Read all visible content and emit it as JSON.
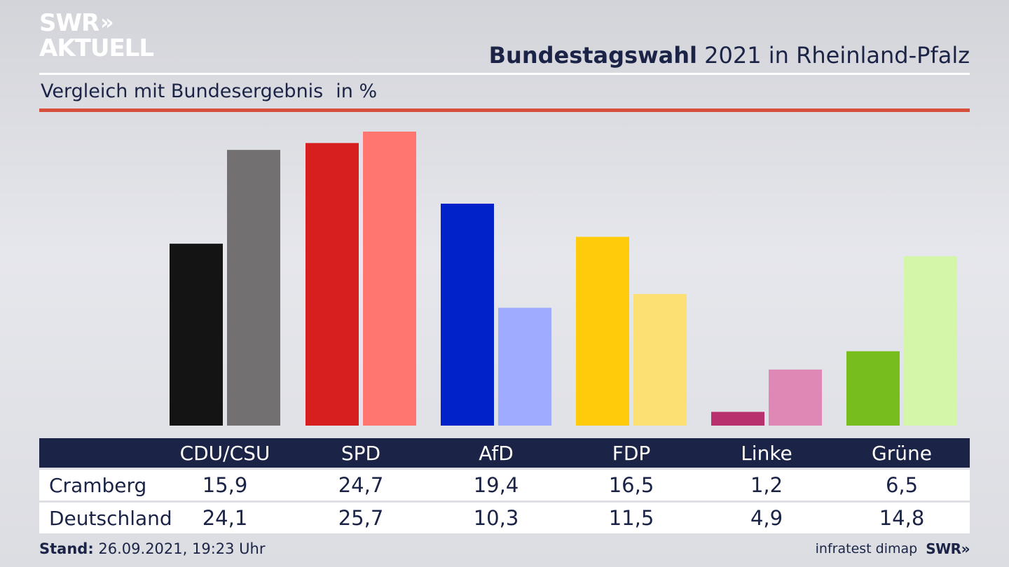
{
  "logo": {
    "line1": "SWR",
    "chevrons": "»",
    "line2": "AKTUELL"
  },
  "header": {
    "title_bold": "Bundestagswahl",
    "title_rest": " 2021 in Rheinland-Pfalz"
  },
  "subtitle": {
    "text": "Vergleich mit Bundesergebnis",
    "unit": "in %"
  },
  "table": {
    "rows": [
      {
        "label": "Cramberg",
        "values": [
          "15,9",
          "24,7",
          "19,4",
          "16,5",
          "1,2",
          "6,5"
        ]
      },
      {
        "label": "Deutschland",
        "values": [
          "24,1",
          "25,7",
          "10,3",
          "11,5",
          "4,9",
          "14,8"
        ]
      }
    ]
  },
  "footer": {
    "stand_label": "Stand:",
    "stand_value": " 26.09.2021, 19:23 Uhr",
    "source": "infratest dimap",
    "brand": "SWR»"
  },
  "colors": {
    "navy": "#1b2446",
    "accent_red": "#d64f3c",
    "local": [
      "#141414",
      "#d81f1f",
      "#0022c8",
      "#ffcb0a",
      "#b8306e",
      "#78bd1e"
    ],
    "national": [
      "#727070",
      "#ff7670",
      "#9eabff",
      "#fde073",
      "#e088b5",
      "#d3f6a8"
    ]
  },
  "chart_data": {
    "type": "bar",
    "categories": [
      "CDU/CSU",
      "SPD",
      "AfD",
      "FDP",
      "Linke",
      "Grüne"
    ],
    "series": [
      {
        "name": "Cramberg",
        "values": [
          15.9,
          24.7,
          19.4,
          16.5,
          1.2,
          6.5
        ]
      },
      {
        "name": "Deutschland",
        "values": [
          24.1,
          25.7,
          10.3,
          11.5,
          4.9,
          14.8
        ]
      }
    ],
    "title": "Bundestagswahl 2021 in Rheinland-Pfalz",
    "subtitle": "Vergleich mit Bundesergebnis",
    "ylabel": "in %",
    "ylim": [
      0,
      25.7
    ],
    "grid": false
  }
}
